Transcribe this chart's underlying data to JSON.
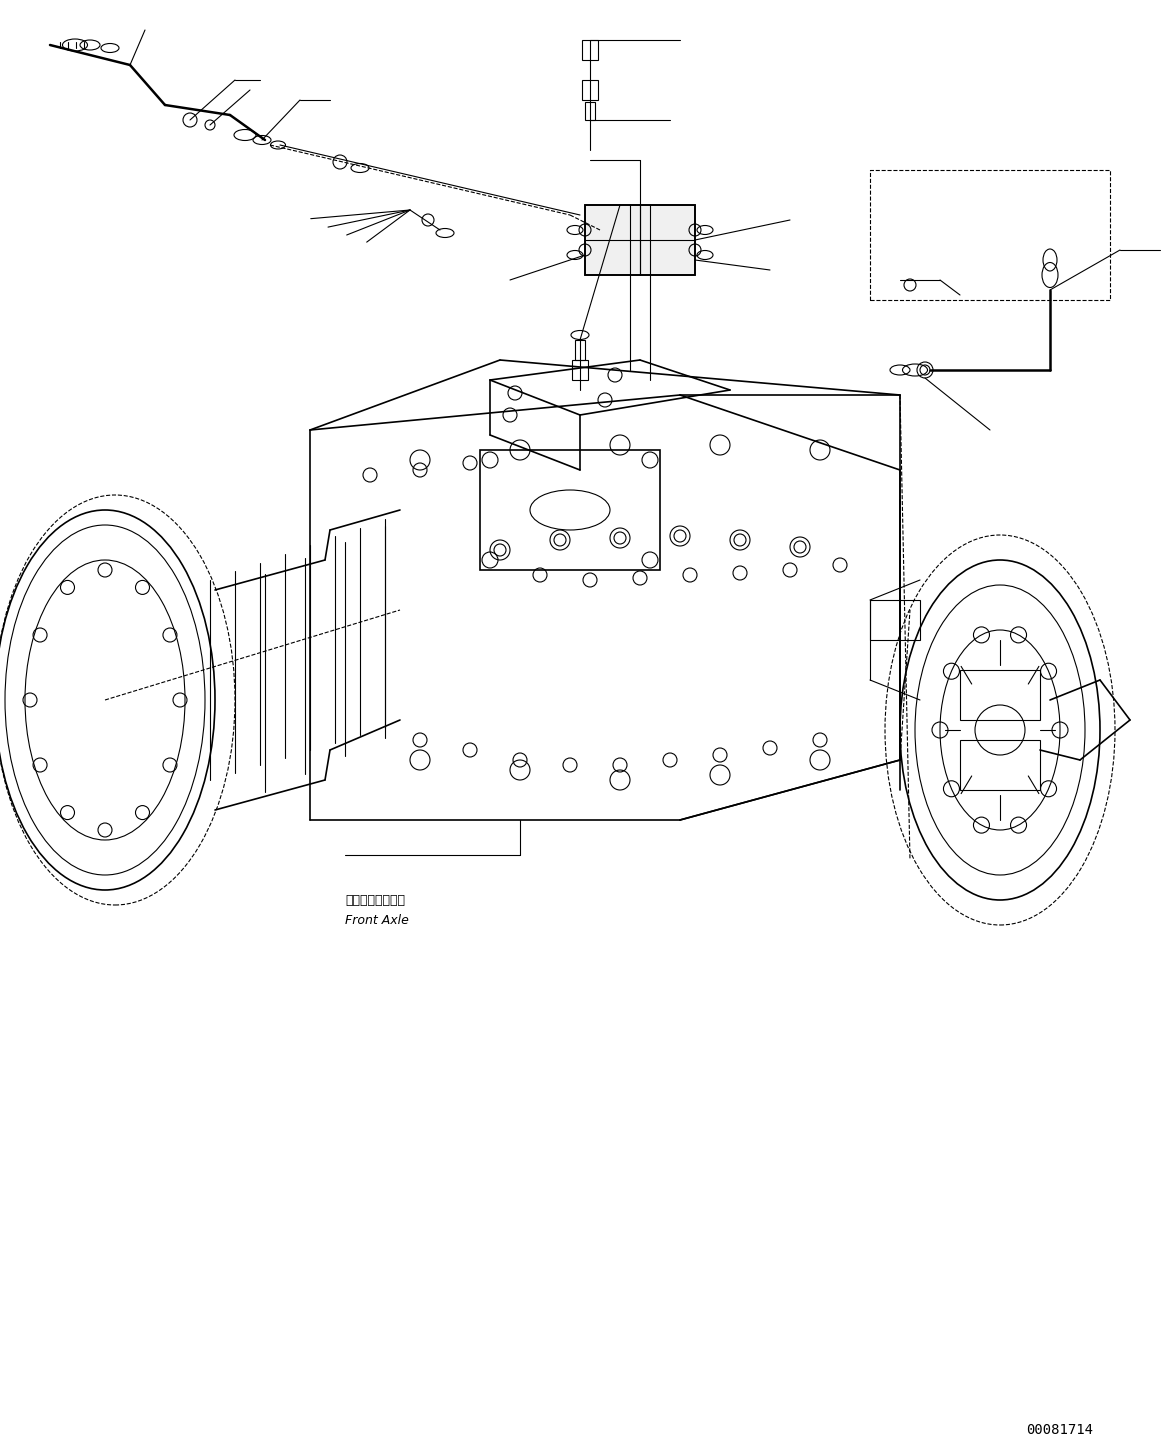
{
  "background_color": "#ffffff",
  "line_color": "#000000",
  "figure_width": 11.63,
  "figure_height": 14.56,
  "dpi": 100,
  "part_number": "00081714",
  "label_front_axle_jp": "フロントアクスル",
  "label_front_axle_en": "Front Axle"
}
